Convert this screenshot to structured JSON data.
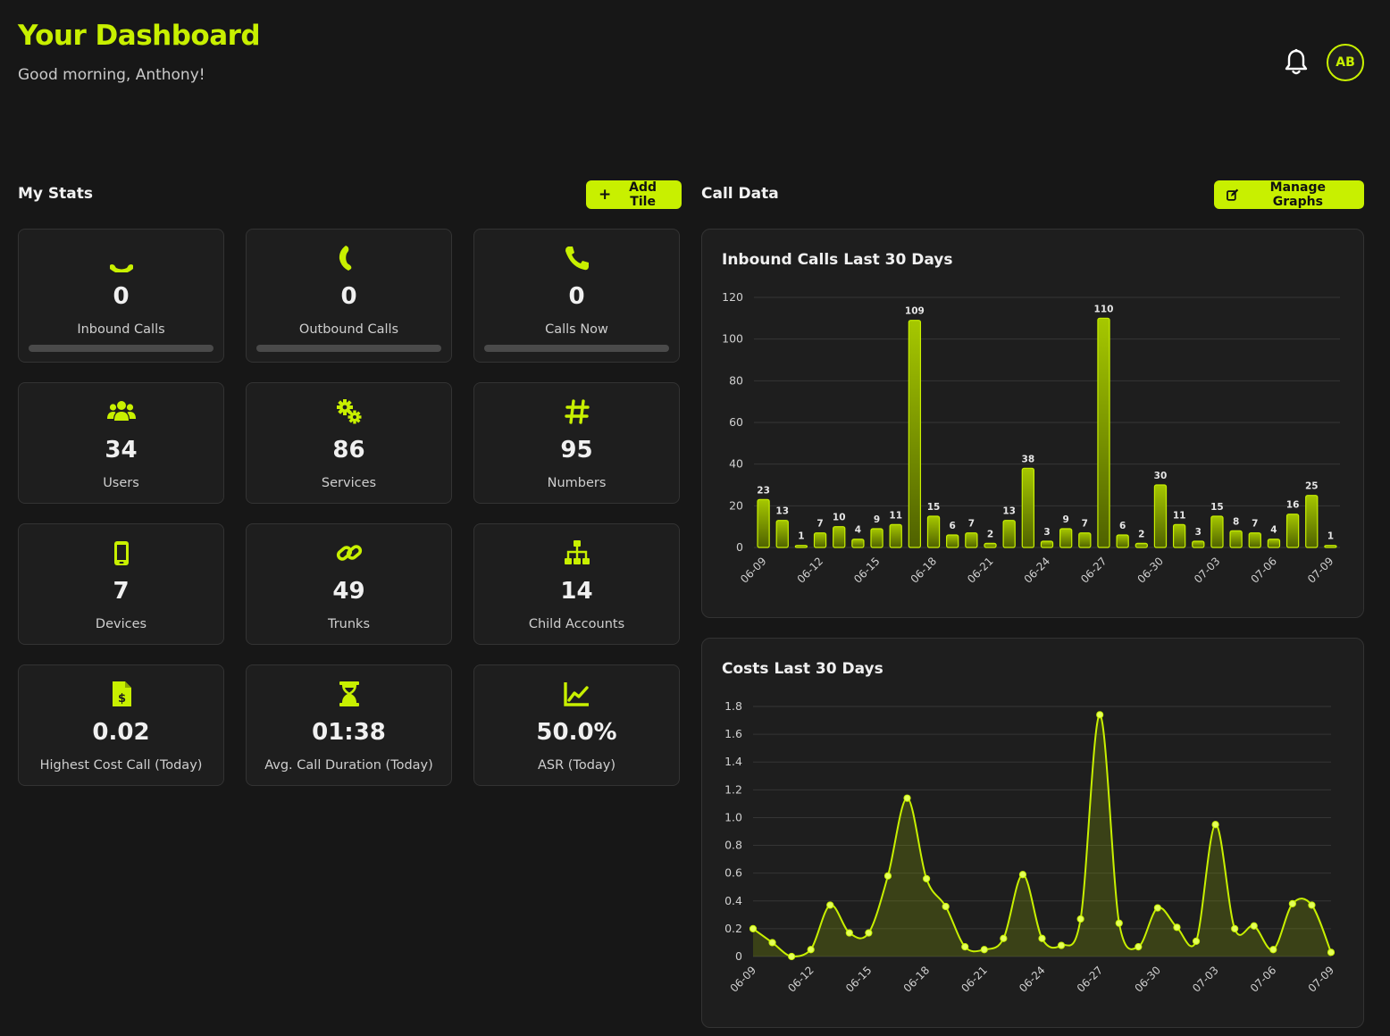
{
  "header": {
    "title": "Your Dashboard",
    "greeting": "Good morning, Anthony!",
    "avatar_initials": "AB"
  },
  "my_stats": {
    "title": "My Stats",
    "add_tile_label": "Add Tile",
    "tiles": [
      {
        "icon": "phone-inbound-icon",
        "value": "0",
        "label": "Inbound Calls",
        "progress": 0
      },
      {
        "icon": "phone-outbound-icon",
        "value": "0",
        "label": "Outbound Calls",
        "progress": 0
      },
      {
        "icon": "phone-icon",
        "value": "0",
        "label": "Calls Now",
        "progress": 0
      },
      {
        "icon": "users-icon",
        "value": "34",
        "label": "Users"
      },
      {
        "icon": "gears-icon",
        "value": "86",
        "label": "Services"
      },
      {
        "icon": "hashtag-icon",
        "value": "95",
        "label": "Numbers"
      },
      {
        "icon": "mobile-device-icon",
        "value": "7",
        "label": "Devices"
      },
      {
        "icon": "link-icon",
        "value": "49",
        "label": "Trunks"
      },
      {
        "icon": "sitemap-icon",
        "value": "14",
        "label": "Child Accounts"
      },
      {
        "icon": "invoice-dollar-icon",
        "value": "0.02",
        "label": "Highest Cost Call (Today)"
      },
      {
        "icon": "hourglass-icon",
        "value": "01:38",
        "label": "Avg. Call Duration (Today)"
      },
      {
        "icon": "line-chart-icon",
        "value": "50.0%",
        "label": "ASR (Today)"
      }
    ]
  },
  "call_data": {
    "title": "Call Data",
    "manage_graphs_label": "Manage Graphs"
  },
  "colors": {
    "accent": "#c8f000",
    "background": "#171717",
    "card": "#1e1e1e"
  },
  "chart_data": [
    {
      "type": "bar",
      "title": "Inbound Calls Last 30 Days",
      "categories": [
        "06-09",
        "06-10",
        "06-11",
        "06-12",
        "06-13",
        "06-14",
        "06-15",
        "06-16",
        "06-17",
        "06-18",
        "06-19",
        "06-20",
        "06-21",
        "06-22",
        "06-23",
        "06-24",
        "06-25",
        "06-26",
        "06-27",
        "06-28",
        "06-29",
        "06-30",
        "07-01",
        "07-02",
        "07-03",
        "07-04",
        "07-05",
        "07-06",
        "07-07",
        "07-08",
        "07-09"
      ],
      "tick_labels": [
        "06-09",
        "06-12",
        "06-15",
        "06-18",
        "06-21",
        "06-24",
        "06-27",
        "06-30",
        "07-03",
        "07-06",
        "07-09"
      ],
      "values": [
        23,
        13,
        1,
        7,
        10,
        4,
        9,
        11,
        109,
        15,
        6,
        7,
        2,
        13,
        38,
        3,
        9,
        7,
        110,
        6,
        2,
        30,
        11,
        3,
        15,
        8,
        7,
        4,
        16,
        25,
        1
      ],
      "ylim": [
        0,
        120
      ],
      "yticks": [
        0,
        20,
        40,
        60,
        80,
        100,
        120
      ],
      "data_labels": true,
      "grid": true
    },
    {
      "type": "area",
      "title": "Costs Last 30 Days",
      "categories": [
        "06-09",
        "06-10",
        "06-11",
        "06-12",
        "06-13",
        "06-14",
        "06-15",
        "06-16",
        "06-17",
        "06-18",
        "06-19",
        "06-20",
        "06-21",
        "06-22",
        "06-23",
        "06-24",
        "06-25",
        "06-26",
        "06-27",
        "06-28",
        "06-29",
        "06-30",
        "07-01",
        "07-02",
        "07-03",
        "07-04",
        "07-05",
        "07-06",
        "07-07",
        "07-08",
        "07-09"
      ],
      "tick_labels": [
        "06-09",
        "06-12",
        "06-15",
        "06-18",
        "06-21",
        "06-24",
        "06-27",
        "06-30",
        "07-03",
        "07-06",
        "07-09"
      ],
      "values": [
        0.2,
        0.1,
        0.0,
        0.05,
        0.37,
        0.17,
        0.17,
        0.58,
        1.14,
        0.56,
        0.36,
        0.07,
        0.05,
        0.13,
        0.59,
        0.13,
        0.08,
        0.27,
        1.74,
        0.24,
        0.07,
        0.35,
        0.21,
        0.11,
        0.95,
        0.2,
        0.22,
        0.05,
        0.38,
        0.37,
        0.03
      ],
      "ylim": [
        0,
        1.8
      ],
      "yticks": [
        "0",
        "0.2",
        "0.4",
        "0.6",
        "0.8",
        "1.0",
        "1.2",
        "1.4",
        "1.6",
        "1.8"
      ],
      "grid": true
    }
  ]
}
